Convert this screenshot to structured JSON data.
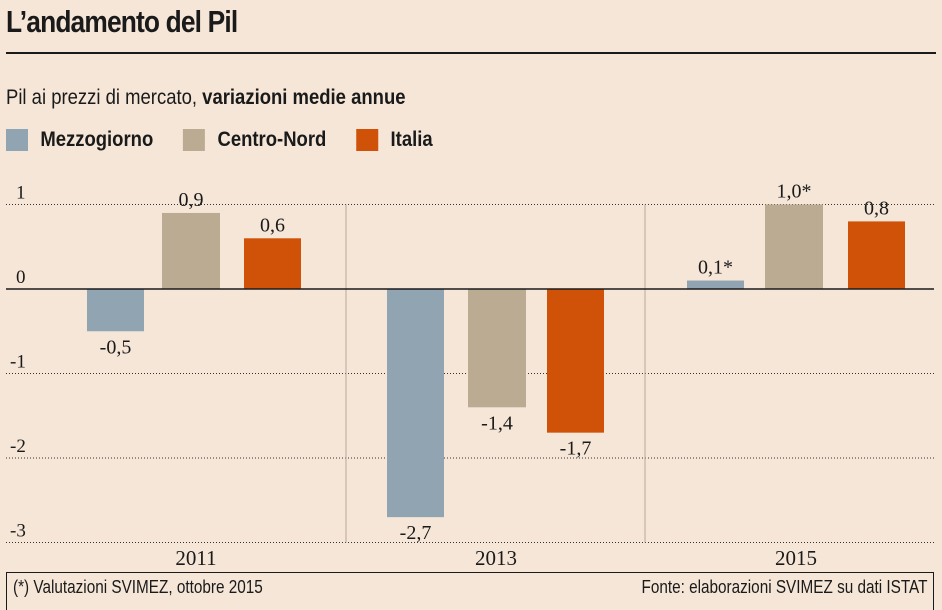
{
  "title": "L’andamento del Pil",
  "subtitle": {
    "normal": "Pil ai prezzi di mercato,",
    "bold": "variazioni medie annue"
  },
  "legend": [
    {
      "label": "Mezzogiorno",
      "color": "#90a4b1"
    },
    {
      "label": "Centro-Nord",
      "color": "#bcab93"
    },
    {
      "label": "Italia",
      "color": "#d05209"
    }
  ],
  "footer": {
    "note": "(*) Valutazioni SVIMEZ, ottobre 2015",
    "source": "Fonte: elaborazioni SVIMEZ su dati ISTAT"
  },
  "chart_data": {
    "type": "bar",
    "title": "L’andamento del Pil",
    "subtitle": "Pil ai prezzi di mercato, variazioni medie annue",
    "categories": [
      "2011",
      "2013",
      "2015"
    ],
    "series": [
      {
        "name": "Mezzogiorno",
        "color": "#90a4b1",
        "values": [
          -0.5,
          -2.7,
          0.1
        ],
        "labels": [
          "-0,5",
          "-2,7",
          "0,1*"
        ]
      },
      {
        "name": "Centro-Nord",
        "color": "#bcab93",
        "values": [
          0.9,
          -1.4,
          1.0
        ],
        "labels": [
          "0,9",
          "-1,4",
          "1,0*"
        ]
      },
      {
        "name": "Italia",
        "color": "#d05209",
        "values": [
          0.6,
          -1.7,
          0.8
        ],
        "labels": [
          "0,6",
          "-1,7",
          "0,8"
        ]
      }
    ],
    "yticks": [
      1,
      0,
      -1,
      -2,
      -3
    ],
    "ytick_labels": [
      "1",
      "0",
      "-1",
      "-2",
      "-3"
    ],
    "ylim": [
      -3,
      1
    ],
    "grid": true,
    "legend_position": "top-left",
    "xlabel": "",
    "ylabel": ""
  }
}
